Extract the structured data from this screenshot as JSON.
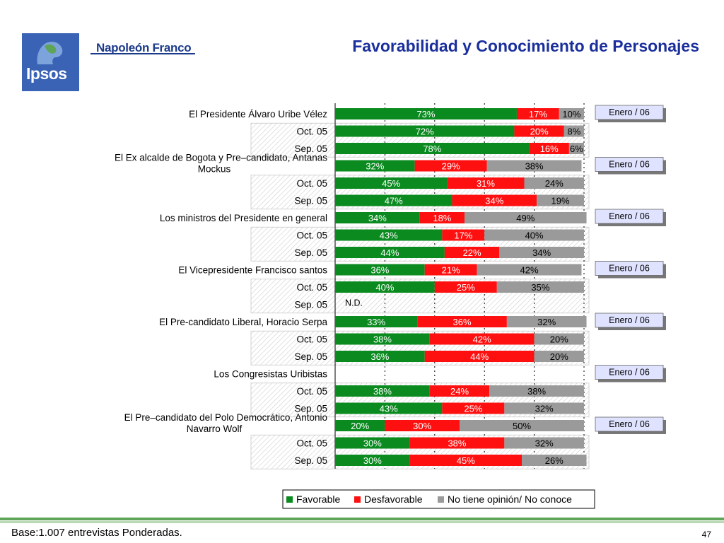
{
  "header": {
    "logo_text": "Ipsos",
    "brand": "Napoleón Franco",
    "title": "Favorabilidad y Conocimiento de Personajes"
  },
  "footer": {
    "base": "Base:1.007 entrevistas Ponderadas.",
    "page": "47"
  },
  "colors": {
    "favorable": "#0a8a1f",
    "desfavorable": "#ff1010",
    "no_opinion": "#9a9a9a"
  },
  "chart_data": {
    "type": "bar",
    "orientation": "horizontal-stacked",
    "series": [
      {
        "name": "Favorable"
      },
      {
        "name": "Desfavorable"
      },
      {
        "name": "No tiene opinión/ No conoce"
      }
    ],
    "groups": [
      {
        "label": "El Presidente Álvaro Uribe Vélez",
        "badge": "Enero / 06",
        "rows": [
          {
            "label": "",
            "values": [
              73,
              17,
              10
            ]
          },
          {
            "label": "Oct. 05",
            "values": [
              72,
              20,
              8
            ]
          },
          {
            "label": "Sep. 05",
            "values": [
              78,
              16,
              6
            ]
          }
        ]
      },
      {
        "label": "El Ex alcalde de Bogota y Pre–candidato, Antanas Mockus",
        "badge": "Enero / 06",
        "rows": [
          {
            "label": "",
            "values": [
              32,
              29,
              38
            ]
          },
          {
            "label": "Oct. 05",
            "values": [
              45,
              31,
              24
            ]
          },
          {
            "label": "Sep. 05",
            "values": [
              47,
              34,
              19
            ]
          }
        ]
      },
      {
        "label": "Los ministros del Presidente en general",
        "badge": "Enero / 06",
        "rows": [
          {
            "label": "",
            "values": [
              34,
              18,
              49
            ]
          },
          {
            "label": "Oct. 05",
            "values": [
              43,
              17,
              40
            ]
          },
          {
            "label": "Sep. 05",
            "values": [
              44,
              22,
              34
            ]
          }
        ]
      },
      {
        "label": "El Vicepresidente Francisco santos",
        "badge": "Enero / 06",
        "rows": [
          {
            "label": "",
            "values": [
              36,
              21,
              42
            ]
          },
          {
            "label": "Oct. 05",
            "values": [
              40,
              25,
              35
            ]
          },
          {
            "label": "Sep. 05",
            "values": null,
            "note": "N.D."
          }
        ]
      },
      {
        "label": "El Pre-candidato Liberal, Horacio Serpa",
        "badge": "Enero / 06",
        "rows": [
          {
            "label": "",
            "values": [
              33,
              36,
              32
            ]
          },
          {
            "label": "Oct. 05",
            "values": [
              38,
              42,
              20
            ]
          },
          {
            "label": "Sep. 05",
            "values": [
              36,
              44,
              20
            ]
          }
        ]
      },
      {
        "label": "Los Congresistas Uribistas",
        "badge": "Enero / 06",
        "rows": [
          {
            "label": "",
            "values": null
          },
          {
            "label": "Oct. 05",
            "values": [
              38,
              24,
              38
            ]
          },
          {
            "label": "Sep. 05",
            "values": [
              43,
              25,
              32
            ]
          }
        ]
      },
      {
        "label": "El Pre–candidato del Polo Democrático, Antonio Navarro Wolf",
        "badge": "Enero / 06",
        "rows": [
          {
            "label": "",
            "values": [
              20,
              30,
              50
            ]
          },
          {
            "label": "Oct. 05",
            "values": [
              30,
              38,
              32
            ]
          },
          {
            "label": "Sep. 05",
            "values": [
              30,
              45,
              26
            ]
          }
        ]
      }
    ],
    "xlim": [
      0,
      100
    ],
    "value_suffix": "%",
    "legend_position": "bottom"
  }
}
